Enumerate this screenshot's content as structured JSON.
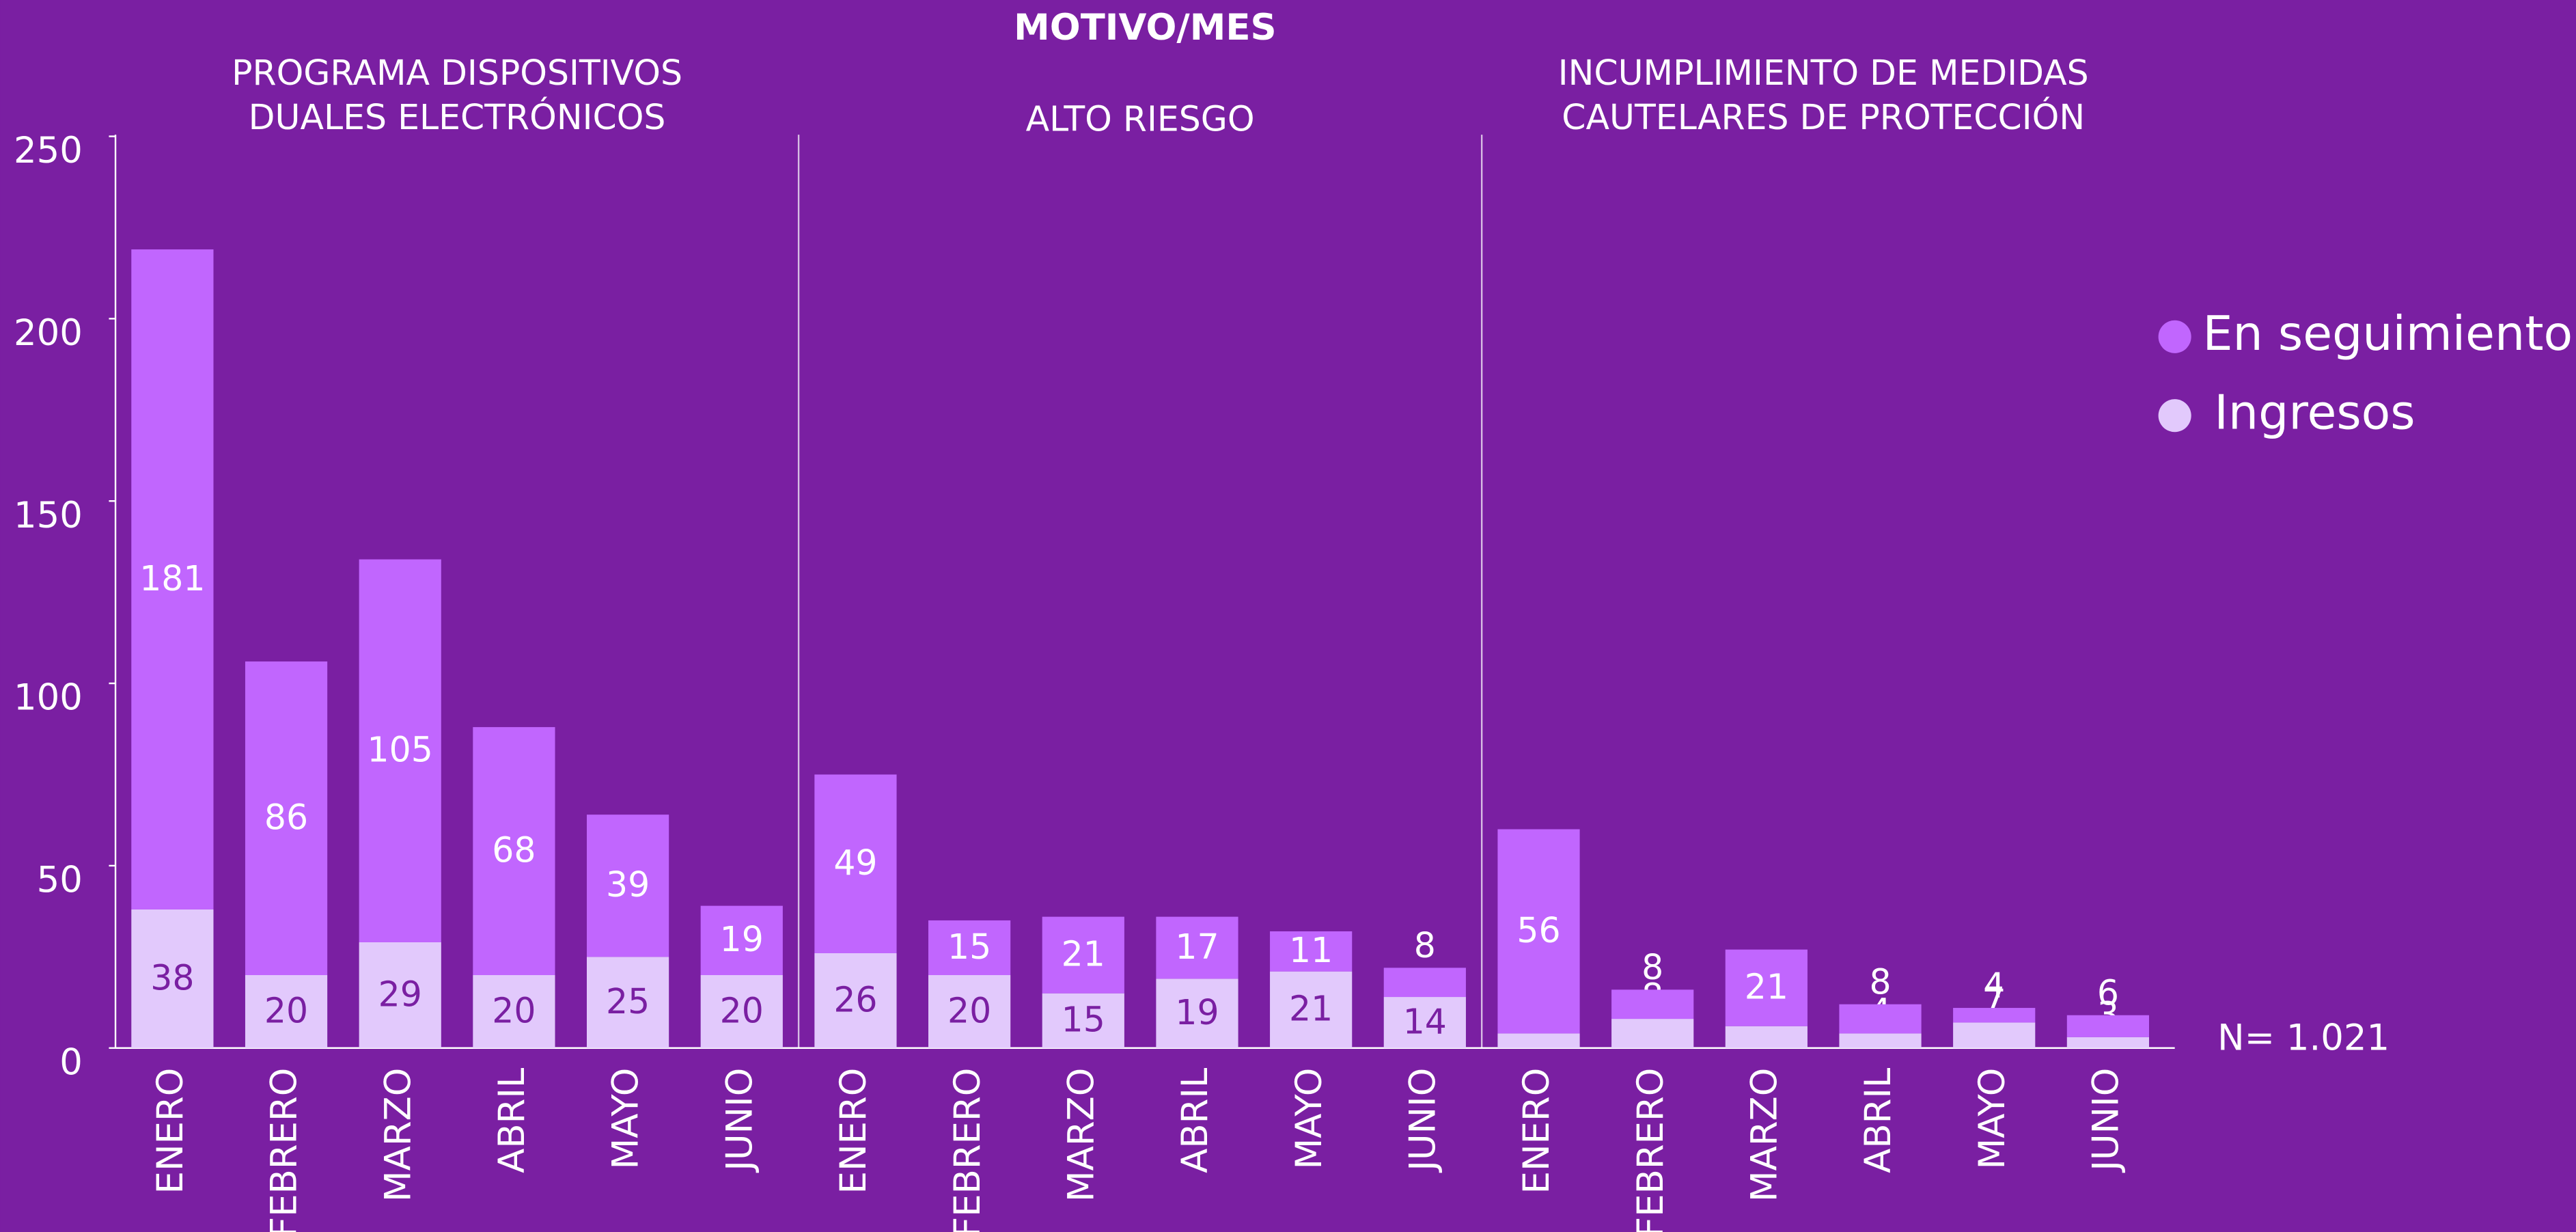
{
  "chart_data": {
    "type": "bar",
    "stacked": true,
    "title": "MOTIVO/MES",
    "group_labels": [
      [
        "PROGRAMA DISPOSITIVOS",
        "DUALES ELECTRÓNICOS"
      ],
      [
        "ALTO RIESGO"
      ],
      [
        "INCUMPLIMIENTO DE MEDIDAS",
        "CAUTELARES DE PROTECCIÓN"
      ]
    ],
    "categories": [
      "ENERO",
      "FEBRERO",
      "MARZO",
      "ABRIL",
      "MAYO",
      "JUNIO",
      "ENERO",
      "FEBRERO",
      "MARZO",
      "ABRIL",
      "MAYO",
      "JUNIO",
      "ENERO",
      "FEBRERO",
      "MARZO",
      "ABRIL",
      "MAYO",
      "JUNIO"
    ],
    "series": [
      {
        "name": "Ingresos",
        "color": "#e2c9fc",
        "label_color": "#7a1fa2",
        "values": [
          38,
          20,
          29,
          20,
          25,
          20,
          26,
          20,
          15,
          19,
          21,
          14,
          4,
          8,
          6,
          4,
          7,
          3
        ]
      },
      {
        "name": "En seguimiento",
        "color": "#c166fe",
        "label_color": "#ffffff",
        "values": [
          181,
          86,
          105,
          68,
          39,
          19,
          49,
          15,
          21,
          17,
          11,
          8,
          56,
          8,
          21,
          8,
          4,
          6
        ]
      }
    ],
    "ylim": [
      0,
      250
    ],
    "yticks": [
      0,
      50,
      100,
      150,
      200,
      250
    ],
    "grid": false,
    "legend": "right",
    "annotation": "N= 1.021"
  }
}
